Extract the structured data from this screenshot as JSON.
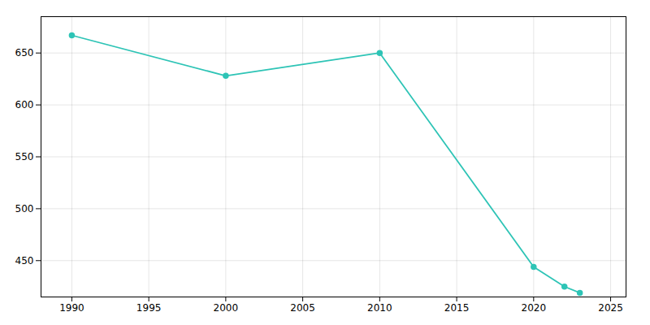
{
  "chart_data": {
    "type": "line",
    "x": [
      1990,
      2000,
      2010,
      2020,
      2022,
      2023
    ],
    "values": [
      667,
      628,
      650,
      444,
      425,
      419
    ],
    "color": "#2EC4B6",
    "marker": "circle",
    "xlim": [
      1988,
      2026
    ],
    "ylim": [
      415,
      685
    ],
    "xticks": [
      1990,
      1995,
      2000,
      2005,
      2010,
      2015,
      2020,
      2025
    ],
    "yticks": [
      450,
      500,
      550,
      600,
      650
    ],
    "grid": true
  }
}
